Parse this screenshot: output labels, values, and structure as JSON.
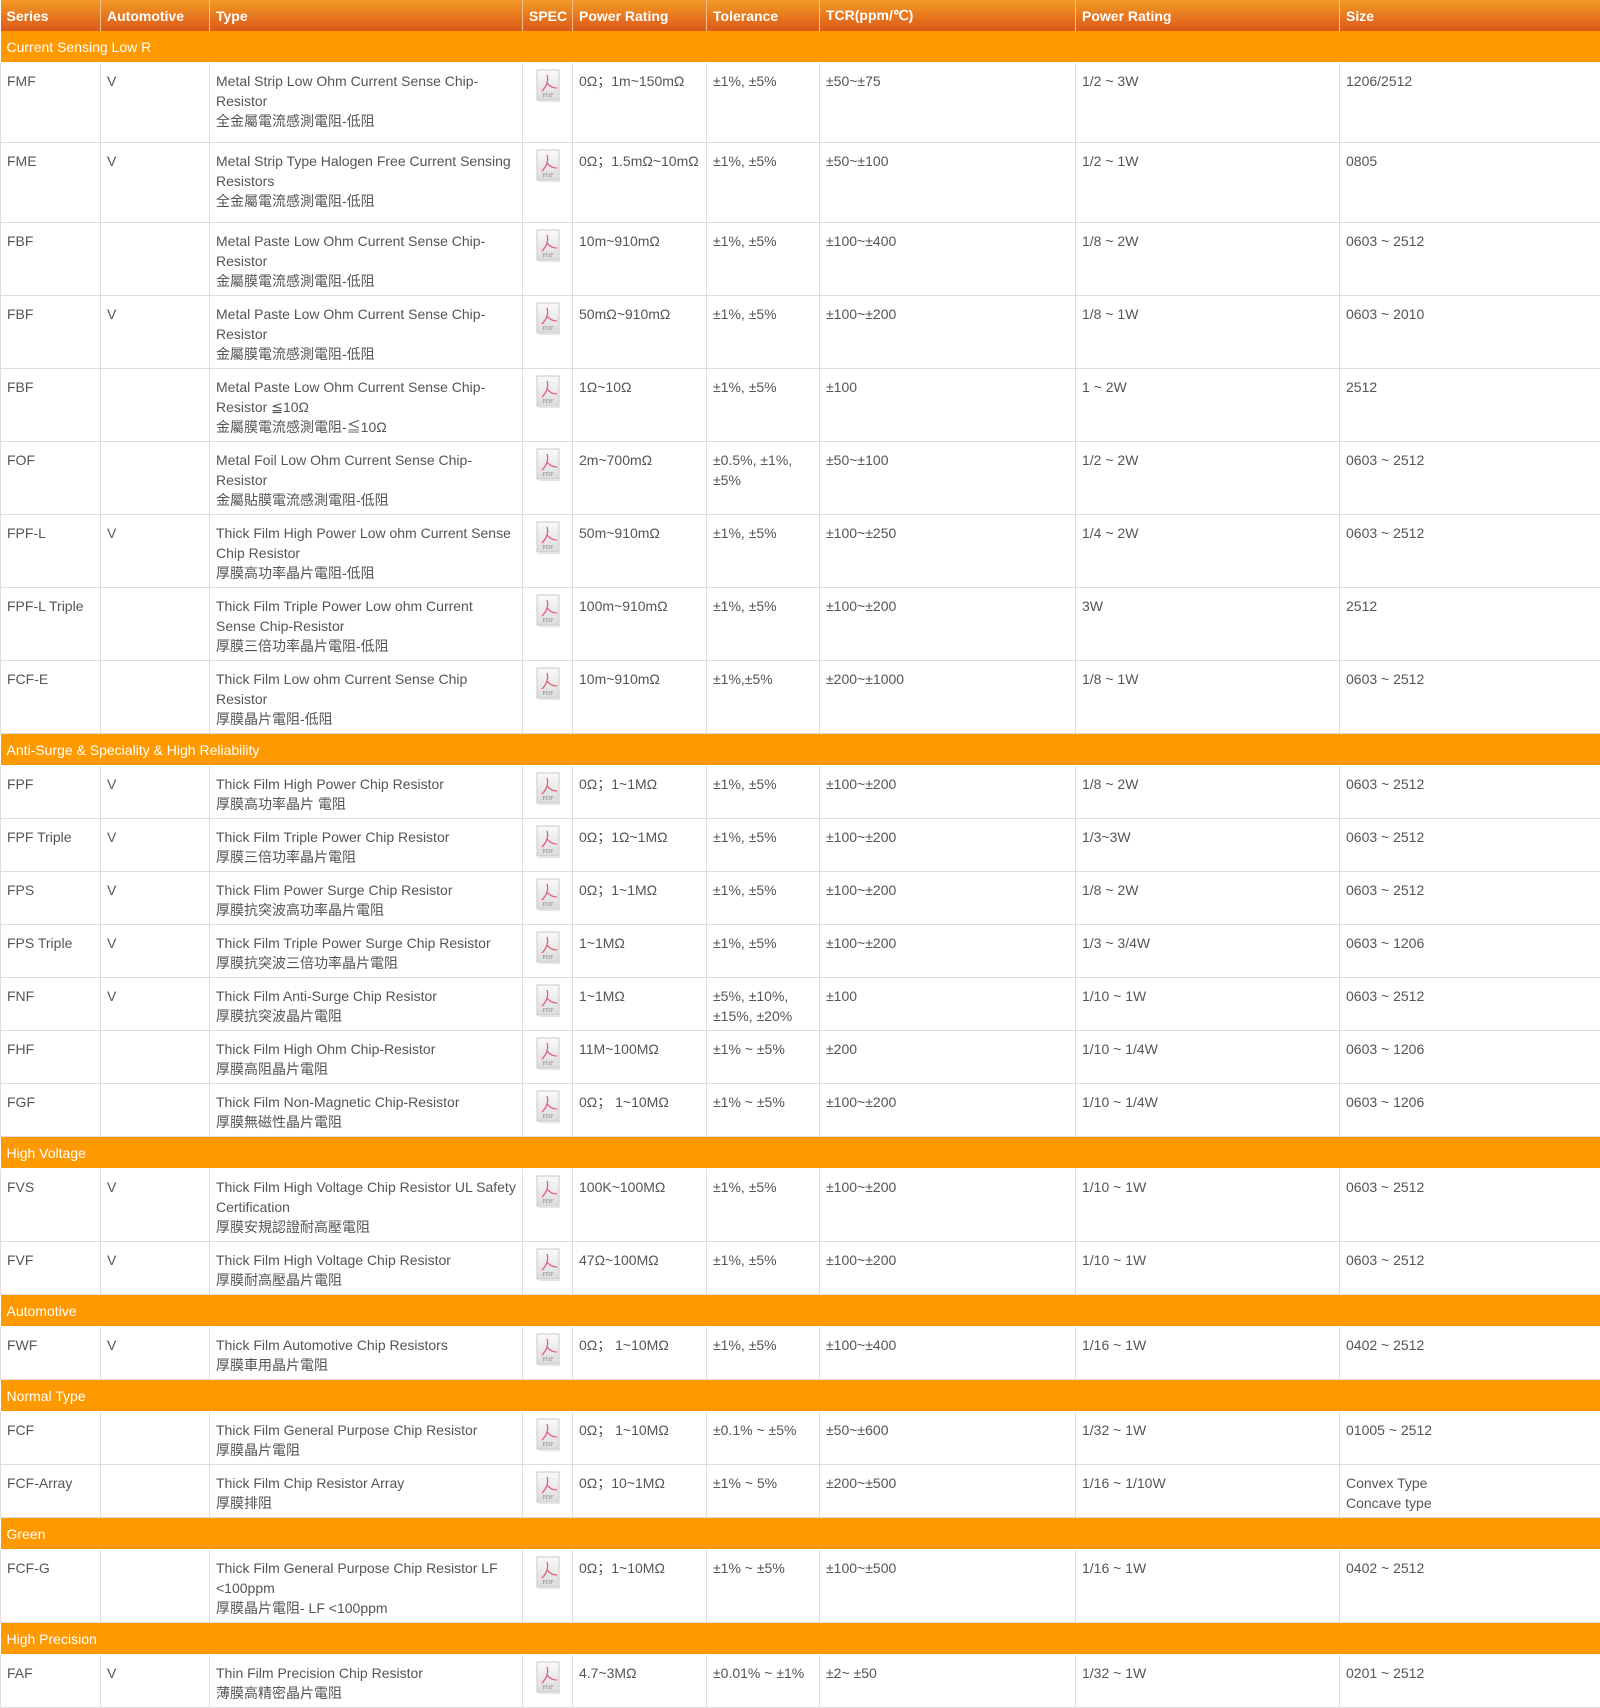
{
  "columns": [
    "Series",
    "Automotive",
    "Type",
    "SPEC",
    "Power Rating",
    "Tolerance",
    "TCR(ppm/℃)",
    "Power Rating",
    "Size"
  ],
  "spec_icon": "pdf-file-icon",
  "colors": {
    "header_top": "#f39a25",
    "header_bottom": "#dc5819",
    "group_bg": "#ff9900",
    "text": "#555555"
  },
  "groups": [
    {
      "title": "Current Sensing Low R",
      "rows": [
        {
          "series": "FMF",
          "auto": "V",
          "type": [
            "Metal Strip Low Ohm Current Sense Chip-Resistor",
            "全金屬電流感測電阻-低阻"
          ],
          "resistance": "0Ω；1m~150mΩ",
          "tolerance": "±1%, ±5%",
          "tcr": "±50~±75",
          "power": "1/2 ~ 3W",
          "size": [
            "1206/2512"
          ]
        },
        {
          "series": "FME",
          "auto": "V",
          "type": [
            "Metal Strip Type Halogen Free Current Sensing Resistors",
            "全金屬電流感測電阻-低阻"
          ],
          "resistance": "0Ω；1.5mΩ~10mΩ",
          "tolerance": "±1%, ±5%",
          "tcr": "±50~±100",
          "power": "1/2 ~ 1W",
          "size": [
            "0805"
          ]
        },
        {
          "series": "FBF",
          "auto": "",
          "type": [
            "Metal Paste Low Ohm Current Sense Chip-Resistor",
            "金屬膜電流感測電阻-低阻"
          ],
          "resistance": "10m~910mΩ",
          "tolerance": "±1%, ±5%",
          "tcr": "±100~±400",
          "power": "1/8 ~ 2W",
          "size": [
            "0603 ~ 2512"
          ]
        },
        {
          "series": "FBF",
          "auto": "V",
          "type": [
            "Metal Paste Low Ohm Current Sense Chip-Resistor",
            "金屬膜電流感測電阻-低阻"
          ],
          "resistance": "50mΩ~910mΩ",
          "tolerance": "±1%, ±5%",
          "tcr": "±100~±200",
          "power": "1/8 ~ 1W",
          "size": [
            "0603 ~ 2010"
          ]
        },
        {
          "series": "FBF",
          "auto": "",
          "type": [
            "Metal Paste Low Ohm Current Sense Chip-Resistor ≦10Ω",
            "金屬膜電流感測電阻-≦10Ω"
          ],
          "resistance": "1Ω~10Ω",
          "tolerance": "±1%, ±5%",
          "tcr": "±100",
          "power": "1 ~ 2W",
          "size": [
            "2512"
          ]
        },
        {
          "series": "FOF",
          "auto": "",
          "type": [
            "Metal Foil Low Ohm Current Sense Chip-Resistor",
            "金屬貼膜電流感測電阻-低阻"
          ],
          "resistance": "2m~700mΩ",
          "tolerance": "±0.5%, ±1%, ±5%",
          "tcr": "±50~±100",
          "power": "1/2 ~ 2W",
          "size": [
            "0603 ~ 2512"
          ]
        },
        {
          "series": "FPF-L",
          "auto": "V",
          "type": [
            "Thick Film High Power Low ohm Current Sense Chip Resistor",
            "厚膜高功率晶片電阻-低阻"
          ],
          "resistance": "50m~910mΩ",
          "tolerance": "±1%, ±5%",
          "tcr": "±100~±250",
          "power": "1/4 ~ 2W",
          "size": [
            "0603 ~ 2512"
          ]
        },
        {
          "series": "FPF-L Triple",
          "auto": "",
          "type": [
            "Thick Film Triple Power Low ohm Current Sense Chip-Resistor",
            "厚膜三倍功率晶片電阻-低阻"
          ],
          "resistance": "100m~910mΩ",
          "tolerance": "±1%, ±5%",
          "tcr": "±100~±200",
          "power": "3W",
          "size": [
            "2512"
          ]
        },
        {
          "series": "FCF-E",
          "auto": "",
          "type": [
            "Thick Film Low ohm Current Sense Chip Resistor",
            "厚膜晶片電阻-低阻"
          ],
          "resistance": "10m~910mΩ",
          "tolerance": "±1%,±5%",
          "tcr": "±200~±1000",
          "power": "1/8 ~ 1W",
          "size": [
            "0603 ~ 2512"
          ]
        }
      ]
    },
    {
      "title": "Anti-Surge & Speciality & High Reliability",
      "rows": [
        {
          "series": "FPF",
          "auto": "V",
          "type": [
            "Thick Film High Power Chip Resistor",
            "厚膜高功率晶片 電阻"
          ],
          "resistance": "0Ω；1~1MΩ",
          "tolerance": "±1%, ±5%",
          "tcr": "±100~±200",
          "power": "1/8 ~ 2W",
          "size": [
            "0603 ~ 2512"
          ]
        },
        {
          "series": "FPF Triple",
          "auto": "V",
          "type": [
            "Thick Film Triple Power Chip Resistor",
            "厚膜三倍功率晶片電阻"
          ],
          "resistance": "0Ω；1Ω~1MΩ",
          "tolerance": "±1%, ±5%",
          "tcr": "±100~±200",
          "power": "1/3~3W",
          "size": [
            "0603 ~ 2512"
          ]
        },
        {
          "series": "FPS",
          "auto": "V",
          "type": [
            "Thick Flim Power Surge Chip Resistor",
            "厚膜抗突波高功率晶片電阻"
          ],
          "resistance": "0Ω；1~1MΩ",
          "tolerance": "±1%, ±5%",
          "tcr": "±100~±200",
          "power": "1/8 ~ 2W",
          "size": [
            "0603 ~ 2512"
          ]
        },
        {
          "series": "FPS Triple",
          "auto": "V",
          "type": [
            "Thick Film Triple Power Surge Chip Resistor",
            "厚膜抗突波三倍功率晶片電阻"
          ],
          "resistance": "1~1MΩ",
          "tolerance": "±1%, ±5%",
          "tcr": "±100~±200",
          "power": "1/3 ~ 3/4W",
          "size": [
            "0603 ~ 1206"
          ]
        },
        {
          "series": "FNF",
          "auto": "V",
          "type": [
            "Thick Film Anti-Surge Chip Resistor",
            "厚膜抗突波晶片電阻"
          ],
          "resistance": "1~1MΩ",
          "tolerance": "±5%, ±10%, ±15%, ±20%",
          "tcr": "±100",
          "power": "1/10 ~ 1W",
          "size": [
            "0603 ~ 2512"
          ]
        },
        {
          "series": "FHF",
          "auto": "",
          "type": [
            "Thick Film High Ohm Chip-Resistor",
            "厚膜高阻晶片電阻"
          ],
          "resistance": "11M~100MΩ",
          "tolerance": "±1% ~ ±5%",
          "tcr": "±200",
          "power": "1/10 ~ 1/4W",
          "size": [
            "0603 ~ 1206"
          ]
        },
        {
          "series": "FGF",
          "auto": "",
          "type": [
            "Thick Film Non-Magnetic Chip-Resistor",
            "厚膜無磁性晶片電阻"
          ],
          "resistance": "0Ω；  1~10MΩ",
          "tolerance": "±1% ~ ±5%",
          "tcr": "±100~±200",
          "power": "1/10 ~ 1/4W",
          "size": [
            "0603 ~ 1206"
          ]
        }
      ]
    },
    {
      "title": "High Voltage",
      "rows": [
        {
          "series": "FVS",
          "auto": "V",
          "type": [
            "Thick Film High Voltage Chip Resistor UL Safety Certification",
            "厚膜安規認證耐高壓電阻"
          ],
          "resistance": "100K~100MΩ",
          "tolerance": "±1%, ±5%",
          "tcr": "±100~±200",
          "power": "1/10 ~ 1W",
          "size": [
            "0603 ~ 2512"
          ]
        },
        {
          "series": "FVF",
          "auto": "V",
          "type": [
            "Thick Film High Voltage Chip Resistor",
            "厚膜耐高壓晶片電阻"
          ],
          "resistance": "47Ω~100MΩ",
          "tolerance": "±1%, ±5%",
          "tcr": "±100~±200",
          "power": "1/10 ~ 1W",
          "size": [
            "0603 ~ 2512"
          ]
        }
      ]
    },
    {
      "title": "Automotive",
      "rows": [
        {
          "series": "FWF",
          "auto": "V",
          "type": [
            "Thick Film Automotive Chip Resistors",
            "厚膜車用晶片電阻"
          ],
          "resistance": "0Ω；  1~10MΩ",
          "tolerance": "±1%, ±5%",
          "tcr": "±100~±400",
          "power": "1/16 ~ 1W",
          "size": [
            "0402 ~ 2512"
          ]
        }
      ]
    },
    {
      "title": "Normal Type",
      "rows": [
        {
          "series": "FCF",
          "auto": "",
          "type": [
            "Thick Film General Purpose Chip Resistor",
            "厚膜晶片電阻"
          ],
          "resistance": "0Ω；  1~10MΩ",
          "tolerance": "±0.1% ~ ±5%",
          "tcr": "±50~±600",
          "power": "1/32 ~ 1W",
          "size": [
            "01005 ~ 2512"
          ]
        },
        {
          "series": "FCF-Array",
          "auto": "",
          "type": [
            "Thick Film Chip Resistor Array",
            "厚膜排阻"
          ],
          "resistance": "0Ω；10~1MΩ",
          "tolerance": "±1% ~ 5%",
          "tcr": "±200~±500",
          "power": "1/16 ~ 1/10W",
          "size": [
            "Convex Type",
            "Concave type"
          ]
        }
      ]
    },
    {
      "title": "Green",
      "rows": [
        {
          "series": "FCF-G",
          "auto": "",
          "type": [
            "Thick Film General Purpose Chip Resistor LF <100ppm",
            "厚膜晶片電阻- LF <100ppm"
          ],
          "resistance": "0Ω；1~10MΩ",
          "tolerance": "±1% ~ ±5%",
          "tcr": "±100~±500",
          "power": "1/16 ~ 1W",
          "size": [
            "0402 ~ 2512"
          ]
        }
      ]
    },
    {
      "title": "High Precision",
      "rows": [
        {
          "series": "FAF",
          "auto": "V",
          "type": [
            "Thin Film Precision Chip Resistor",
            "薄膜高精密晶片電阻"
          ],
          "resistance": "4.7~3MΩ",
          "tolerance": "±0.01% ~ ±1%",
          "tcr": "±2~ ±50",
          "power": "1/32 ~ 1W",
          "size": [
            "0201 ~ 2512"
          ]
        }
      ]
    }
  ]
}
